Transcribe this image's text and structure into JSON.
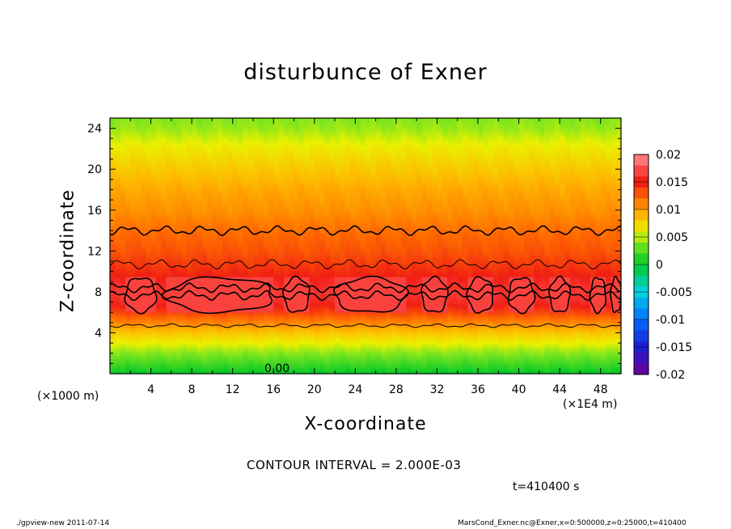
{
  "chart_data": {
    "type": "heatmap",
    "title": "disturbunce of Exner",
    "xlabel": "X-coordinate",
    "ylabel": "Z-coordinate",
    "x_unit": "(×1E4 m)",
    "y_unit": "(×1000 m)",
    "x_ticks": [
      "4",
      "8",
      "12",
      "16",
      "20",
      "24",
      "28",
      "32",
      "36",
      "40",
      "44",
      "48"
    ],
    "y_ticks": [
      "4",
      "8",
      "12",
      "16",
      "20",
      "24"
    ],
    "xlim": [
      0,
      50
    ],
    "ylim": [
      0,
      25
    ],
    "colorbar": {
      "labels": [
        "0.02",
        "0.015",
        "0.01",
        "0.005",
        "0",
        "-0.005",
        "-0.01",
        "-0.015",
        "-0.02"
      ],
      "range": [
        -0.02,
        0.02
      ]
    },
    "contour_label": "0.00",
    "contour_interval": "CONTOUR INTERVAL = 2.000E-03",
    "field_profile": {
      "z": [
        0,
        1,
        2,
        3,
        4,
        5,
        6,
        7,
        8,
        9,
        10,
        12,
        14,
        16,
        18,
        20,
        22,
        24,
        25
      ],
      "value": [
        0.0,
        0.002,
        0.004,
        0.006,
        0.008,
        0.011,
        0.0135,
        0.0155,
        0.0163,
        0.0155,
        0.0145,
        0.013,
        0.012,
        0.0105,
        0.0095,
        0.008,
        0.0065,
        0.0045,
        0.004
      ]
    },
    "high_cells_x": [
      [
        1.5,
        4.5
      ],
      [
        5.5,
        16
      ],
      [
        17,
        19.5
      ],
      [
        22,
        29
      ],
      [
        30.5,
        33
      ],
      [
        35,
        37.5
      ],
      [
        39,
        41.5
      ],
      [
        43,
        45
      ],
      [
        47,
        48.5
      ],
      [
        49,
        50
      ]
    ]
  },
  "time_label": "t=410400 s",
  "footer": {
    "left": "./gpview-new  2011-07-14",
    "right": "MarsCond_Exner.nc@Exner,x=0:500000,z=0:25000,t=410400"
  }
}
